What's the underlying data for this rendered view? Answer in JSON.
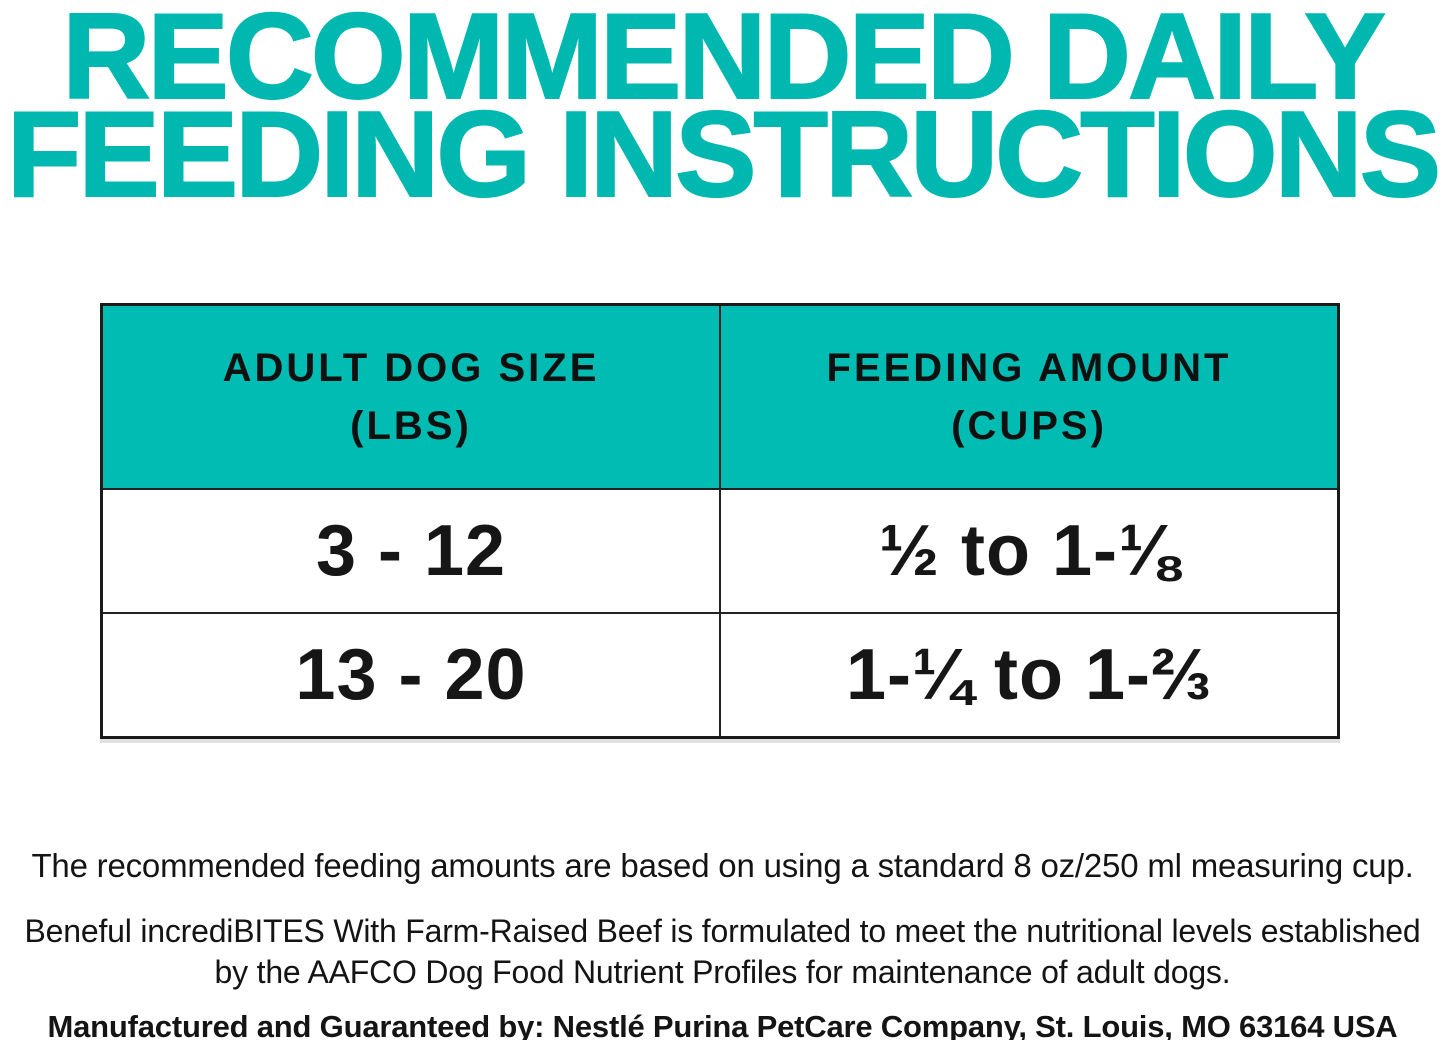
{
  "colors": {
    "accent_teal": "#00bcb2",
    "headline_teal": "#00b8af",
    "text_black": "#1b1b1b"
  },
  "title": {
    "full": "RECOMMENDED DAILY FEEDING INSTRUCTIONS",
    "line1": "RECOMMENDED DAILY",
    "line2": "FEEDING INSTRUCTIONS"
  },
  "table": {
    "headers": [
      {
        "label": "ADULT DOG SIZE",
        "unit": "(LBS)"
      },
      {
        "label": "FEEDING AMOUNT",
        "unit": "(CUPS)"
      }
    ],
    "rows": [
      {
        "size": "3 - 12",
        "amount": "½ to 1-⅛"
      },
      {
        "size": "13 - 20",
        "amount": "1-¼ to 1-⅔"
      }
    ]
  },
  "notes": {
    "measuring_cup": "The recommended feeding amounts are based on using a standard 8 oz/250 ml measuring cup.",
    "aafco": "Beneful incrediBITES With Farm-Raised Beef is formulated to meet the nutritional levels established by the AAFCO Dog Food Nutrient Profiles for maintenance of adult dogs.",
    "manufacturer": "Manufactured and Guaranteed by: Nestlé Purina PetCare Company, St. Louis, MO 63164 USA"
  }
}
